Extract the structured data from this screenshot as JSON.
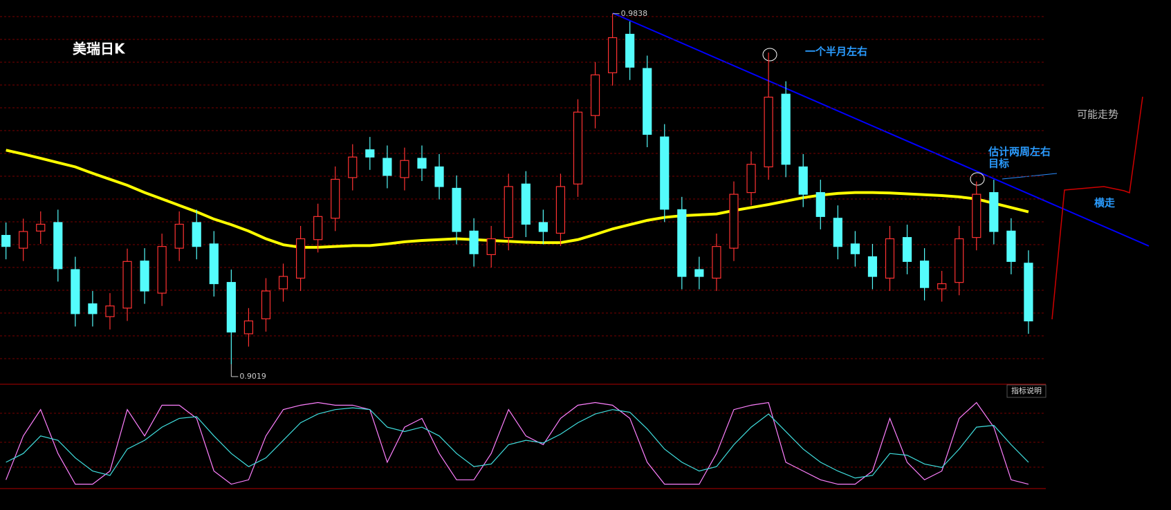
{
  "chart_data": [
    {
      "type": "candlestick",
      "title": "美瑞日K",
      "open": [
        0.932,
        0.929,
        0.933,
        0.935,
        0.924,
        0.916,
        0.913,
        0.915,
        0.926,
        0.9185,
        0.929,
        0.935,
        0.93,
        0.921,
        0.909,
        0.9125,
        0.9195,
        0.922,
        0.931,
        0.936,
        0.9455,
        0.952,
        0.95,
        0.9455,
        0.95,
        0.948,
        0.943,
        0.933,
        0.9275,
        0.9315,
        0.944,
        0.935,
        0.9325,
        0.944,
        0.96,
        0.97,
        0.979,
        0.971,
        0.955,
        0.938,
        0.924,
        0.922,
        0.929,
        0.942,
        0.948,
        0.965,
        0.948,
        0.942,
        0.936,
        0.93,
        0.927,
        0.922,
        0.9315,
        0.926,
        0.9195,
        0.921,
        0.9315,
        0.942,
        0.933,
        0.9255
      ],
      "high": [
        0.935,
        0.9359,
        0.9376,
        0.938,
        0.927,
        0.919,
        0.9185,
        0.9289,
        0.929,
        0.9324,
        0.9376,
        0.938,
        0.933,
        0.924,
        0.915,
        0.922,
        0.9254,
        0.9342,
        0.9394,
        0.9481,
        0.9533,
        0.955,
        0.953,
        0.9525,
        0.953,
        0.951,
        0.946,
        0.936,
        0.9342,
        0.9464,
        0.947,
        0.938,
        0.9464,
        0.9638,
        0.9725,
        0.9838,
        0.982,
        0.974,
        0.958,
        0.941,
        0.927,
        0.9324,
        0.9446,
        0.9516,
        0.9747,
        0.968,
        0.951,
        0.945,
        0.939,
        0.933,
        0.93,
        0.9342,
        0.9345,
        0.929,
        0.9237,
        0.9342,
        0.9446,
        0.945,
        0.936,
        0.9285
      ],
      "low": [
        0.9264,
        0.926,
        0.93,
        0.9212,
        0.9107,
        0.9107,
        0.91,
        0.912,
        0.916,
        0.9155,
        0.926,
        0.9264,
        0.9177,
        0.9019,
        0.906,
        0.9095,
        0.9165,
        0.919,
        0.928,
        0.933,
        0.9425,
        0.9473,
        0.943,
        0.9425,
        0.9447,
        0.9404,
        0.9299,
        0.9247,
        0.9245,
        0.9285,
        0.9316,
        0.9299,
        0.9295,
        0.941,
        0.957,
        0.967,
        0.9683,
        0.9526,
        0.9351,
        0.9194,
        0.9194,
        0.919,
        0.926,
        0.939,
        0.945,
        0.9456,
        0.9386,
        0.9334,
        0.9264,
        0.9247,
        0.9194,
        0.919,
        0.9229,
        0.9168,
        0.9165,
        0.918,
        0.9285,
        0.9299,
        0.9229,
        0.909
      ],
      "close": [
        0.9294,
        0.9329,
        0.9346,
        0.9242,
        0.9137,
        0.9137,
        0.9155,
        0.9259,
        0.919,
        0.9294,
        0.9346,
        0.9294,
        0.9207,
        0.9094,
        0.912,
        0.919,
        0.9224,
        0.9312,
        0.9364,
        0.9451,
        0.9503,
        0.9503,
        0.946,
        0.9495,
        0.9477,
        0.9434,
        0.9329,
        0.9277,
        0.9312,
        0.9434,
        0.9346,
        0.9329,
        0.9434,
        0.9608,
        0.9695,
        0.9782,
        0.9713,
        0.9556,
        0.9381,
        0.9224,
        0.9224,
        0.9294,
        0.9416,
        0.9486,
        0.9643,
        0.9486,
        0.9416,
        0.9364,
        0.9294,
        0.9277,
        0.9224,
        0.9312,
        0.9259,
        0.9198,
        0.9207,
        0.9312,
        0.9416,
        0.9329,
        0.9259,
        0.912
      ],
      "up_color": "#ff3232",
      "down_color": "#54fcfc",
      "series": [
        {
          "color": "#ffff00",
          "values": [
            0.9519,
            0.951,
            0.95,
            0.949,
            0.948,
            0.9465,
            0.9451,
            0.9437,
            0.942,
            0.9405,
            0.939,
            0.9375,
            0.9358,
            0.9345,
            0.933,
            0.9312,
            0.9298,
            0.9292,
            0.9292,
            0.9294,
            0.9296,
            0.9296,
            0.93,
            0.9305,
            0.9308,
            0.931,
            0.9312,
            0.931,
            0.9308,
            0.9306,
            0.9304,
            0.9303,
            0.9303,
            0.931,
            0.9322,
            0.9335,
            0.9345,
            0.9355,
            0.9362,
            0.9366,
            0.9368,
            0.937,
            0.9378,
            0.9385,
            0.9392,
            0.94,
            0.9408,
            0.9414,
            0.9418,
            0.942,
            0.942,
            0.9419,
            0.9417,
            0.9415,
            0.9413,
            0.941,
            0.9405,
            0.9395,
            0.9385,
            0.9375
          ]
        }
      ],
      "ylim": [
        0.8985,
        0.987
      ],
      "annotations": [
        "一个半月左右",
        "估计两周左右",
        "目标",
        "可能走势",
        "横走"
      ]
    },
    {
      "type": "line",
      "button": "指标说明",
      "series": [
        {
          "color": "#ff80ff",
          "values": [
            10,
            60,
            90,
            40,
            5,
            5,
            20,
            90,
            60,
            95,
            95,
            80,
            20,
            5,
            10,
            60,
            90,
            95,
            98,
            95,
            95,
            90,
            30,
            70,
            80,
            40,
            10,
            10,
            40,
            90,
            60,
            50,
            80,
            95,
            98,
            95,
            80,
            30,
            5,
            5,
            5,
            40,
            90,
            95,
            98,
            30,
            20,
            10,
            5,
            5,
            20,
            80,
            30,
            10,
            20,
            80,
            98,
            70,
            10,
            5
          ]
        },
        {
          "color": "#40e0e0",
          "values": [
            30,
            40,
            60,
            55,
            35,
            20,
            15,
            45,
            55,
            70,
            80,
            82,
            60,
            40,
            25,
            35,
            55,
            75,
            85,
            90,
            92,
            90,
            70,
            65,
            70,
            60,
            40,
            25,
            28,
            50,
            55,
            52,
            62,
            75,
            85,
            90,
            87,
            68,
            45,
            30,
            20,
            25,
            50,
            70,
            85,
            65,
            45,
            30,
            20,
            12,
            15,
            40,
            38,
            28,
            24,
            45,
            70,
            72,
            50,
            30
          ]
        }
      ],
      "ylim": [
        0,
        100
      ]
    }
  ]
}
